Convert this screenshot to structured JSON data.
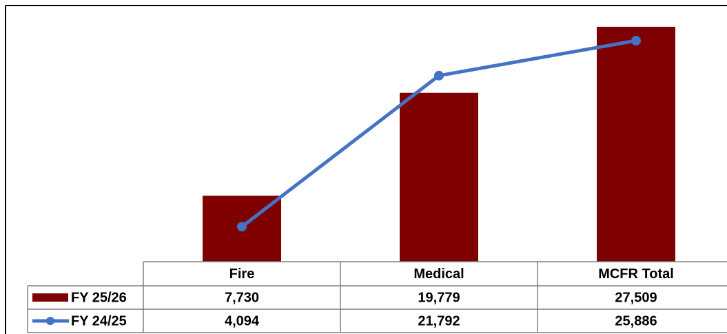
{
  "chart_data": {
    "type": "bar-line",
    "categories": [
      "Fire",
      "Medical",
      "MCFR Total"
    ],
    "series": [
      {
        "name": "FY 25/26",
        "type": "bar",
        "color": "#7f0000",
        "values": [
          7730,
          19779,
          27509
        ],
        "value_labels": [
          "7,730",
          "19,779",
          "27,509"
        ]
      },
      {
        "name": "FY 24/25",
        "type": "line",
        "color": "#4472c4",
        "values": [
          4094,
          21792,
          25886
        ],
        "value_labels": [
          "4,094",
          "21,792",
          "25,886"
        ]
      }
    ],
    "ylim": [
      0,
      30000
    ],
    "data_table": true
  }
}
